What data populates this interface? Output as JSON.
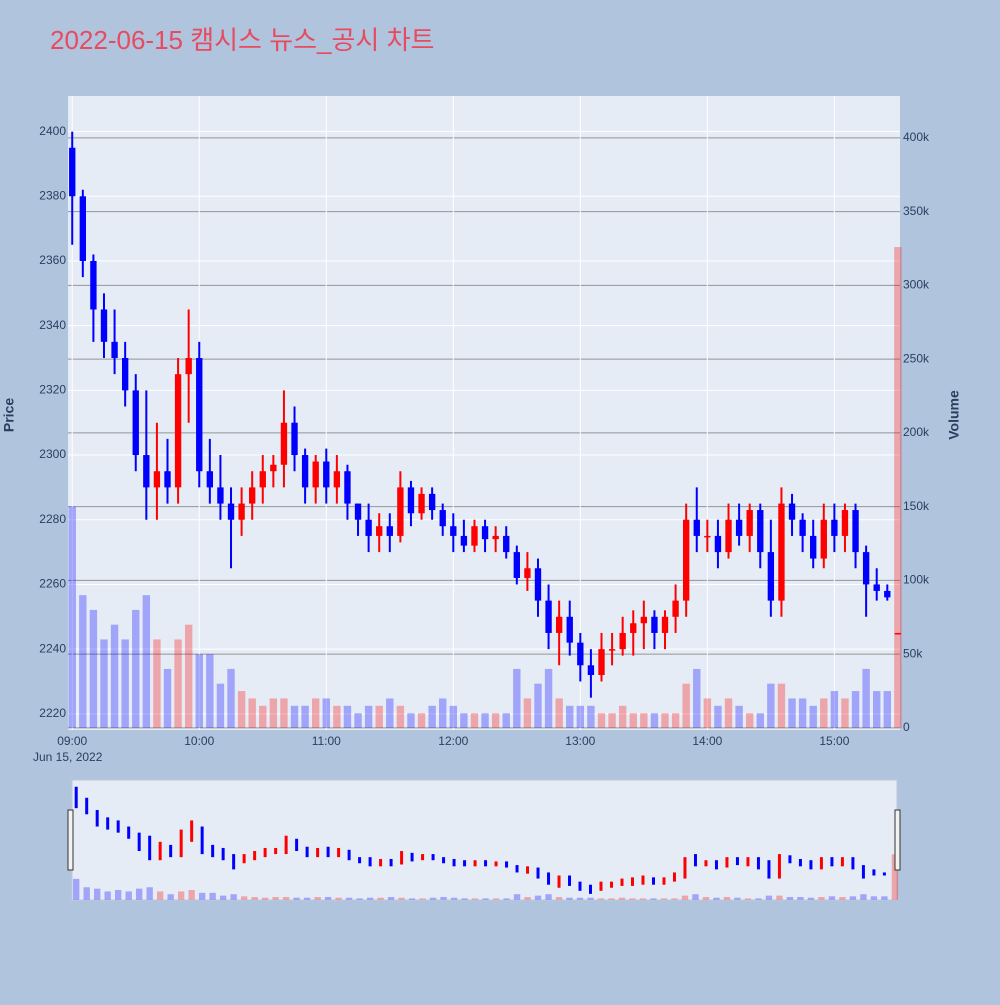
{
  "chart_data": {
    "type": "candlestick",
    "title": "2022-06-15 캠시스 뉴스_공시 차트",
    "x_date_label": "Jun 15, 2022",
    "y_title": "Price",
    "y2_title": "Volume",
    "increasing_color": "#ff0000",
    "decreasing_color": "#0000ff",
    "volume_increasing_color": "rgba(255,0,0,0.3)",
    "volume_decreasing_color": "rgba(0,0,255,0.3)",
    "grid": true,
    "xlim": [
      "08:58",
      "15:31"
    ],
    "xticks": [
      "09:00",
      "10:00",
      "11:00",
      "12:00",
      "13:00",
      "14:00",
      "15:00"
    ],
    "ylim": [
      2215,
      2411
    ],
    "yticks": [
      2220,
      2240,
      2260,
      2280,
      2300,
      2320,
      2340,
      2360,
      2380,
      2400
    ],
    "y2lim": [
      -1400,
      428400
    ],
    "y2ticks": [
      0,
      {
        "value": 50000,
        "label": "50k"
      },
      {
        "value": 100000,
        "label": "100k"
      },
      {
        "value": 150000,
        "label": "150k"
      },
      {
        "value": 200000,
        "label": "200k"
      },
      {
        "value": 250000,
        "label": "250k"
      },
      {
        "value": 300000,
        "label": "300k"
      },
      {
        "value": 350000,
        "label": "350k"
      },
      {
        "value": 400000,
        "label": "400k"
      }
    ],
    "x": [
      "09:00",
      "09:05",
      "09:10",
      "09:15",
      "09:20",
      "09:25",
      "09:30",
      "09:35",
      "09:40",
      "09:45",
      "09:50",
      "09:55",
      "10:00",
      "10:05",
      "10:10",
      "10:15",
      "10:20",
      "10:25",
      "10:30",
      "10:35",
      "10:40",
      "10:45",
      "10:50",
      "10:55",
      "11:00",
      "11:05",
      "11:10",
      "11:15",
      "11:20",
      "11:25",
      "11:30",
      "11:35",
      "11:40",
      "11:45",
      "11:50",
      "11:55",
      "12:00",
      "12:05",
      "12:10",
      "12:15",
      "12:20",
      "12:25",
      "12:30",
      "12:35",
      "12:40",
      "12:45",
      "12:50",
      "12:55",
      "13:00",
      "13:05",
      "13:10",
      "13:15",
      "13:20",
      "13:25",
      "13:30",
      "13:35",
      "13:40",
      "13:45",
      "13:50",
      "13:55",
      "14:00",
      "14:05",
      "14:10",
      "14:15",
      "14:20",
      "14:25",
      "14:30",
      "14:35",
      "14:40",
      "14:45",
      "14:50",
      "14:55",
      "15:00",
      "15:05",
      "15:10",
      "15:15",
      "15:20",
      "15:25",
      "15:30"
    ],
    "open": [
      2395,
      2380,
      2360,
      2345,
      2335,
      2330,
      2320,
      2300,
      2290,
      2295,
      2290,
      2325,
      2330,
      2295,
      2290,
      2285,
      2280,
      2285,
      2290,
      2295,
      2297,
      2310,
      2300,
      2290,
      2298,
      2290,
      2295,
      2285,
      2280,
      2275,
      2278,
      2275,
      2290,
      2282,
      2288,
      2283,
      2278,
      2275,
      2272,
      2278,
      2274,
      2275,
      2270,
      2262,
      2265,
      2255,
      2245,
      2250,
      2242,
      2235,
      2232,
      2240,
      2240,
      2245,
      2248,
      2250,
      2245,
      2250,
      2255,
      2280,
      2275,
      2275,
      2270,
      2280,
      2275,
      2283,
      2270,
      2255,
      2285,
      2280,
      2275,
      2268,
      2280,
      2275,
      2283,
      2270,
      2260,
      2258,
      2245
    ],
    "high": [
      2400,
      2382,
      2362,
      2350,
      2345,
      2335,
      2325,
      2320,
      2310,
      2305,
      2330,
      2345,
      2335,
      2305,
      2300,
      2290,
      2290,
      2295,
      2300,
      2300,
      2320,
      2315,
      2302,
      2300,
      2302,
      2300,
      2297,
      2285,
      2285,
      2282,
      2282,
      2295,
      2292,
      2290,
      2290,
      2285,
      2282,
      2280,
      2280,
      2280,
      2278,
      2278,
      2272,
      2270,
      2268,
      2260,
      2255,
      2255,
      2245,
      2240,
      2245,
      2245,
      2250,
      2252,
      2255,
      2252,
      2252,
      2260,
      2285,
      2290,
      2280,
      2280,
      2285,
      2285,
      2285,
      2285,
      2280,
      2290,
      2288,
      2282,
      2280,
      2285,
      2285,
      2285,
      2285,
      2272,
      2265,
      2260,
      2245
    ],
    "low": [
      2365,
      2355,
      2335,
      2330,
      2325,
      2315,
      2295,
      2280,
      2280,
      2285,
      2285,
      2310,
      2290,
      2285,
      2280,
      2265,
      2275,
      2280,
      2285,
      2290,
      2290,
      2295,
      2285,
      2285,
      2285,
      2285,
      2280,
      2275,
      2270,
      2270,
      2270,
      2273,
      2278,
      2280,
      2280,
      2275,
      2270,
      2270,
      2270,
      2270,
      2270,
      2268,
      2260,
      2258,
      2250,
      2240,
      2235,
      2238,
      2230,
      2225,
      2230,
      2235,
      2238,
      2238,
      2240,
      2240,
      2240,
      2245,
      2250,
      2270,
      2270,
      2265,
      2268,
      2272,
      2270,
      2265,
      2250,
      2250,
      2275,
      2270,
      2265,
      2265,
      2270,
      2270,
      2265,
      2250,
      2255,
      2255,
      2245
    ],
    "close": [
      2380,
      2360,
      2345,
      2335,
      2330,
      2320,
      2300,
      2290,
      2295,
      2290,
      2325,
      2330,
      2295,
      2290,
      2285,
      2280,
      2285,
      2290,
      2295,
      2297,
      2310,
      2300,
      2290,
      2298,
      2290,
      2295,
      2285,
      2280,
      2275,
      2278,
      2275,
      2290,
      2282,
      2288,
      2283,
      2278,
      2275,
      2272,
      2278,
      2274,
      2275,
      2270,
      2262,
      2265,
      2255,
      2245,
      2250,
      2242,
      2235,
      2232,
      2240,
      2240,
      2245,
      2248,
      2250,
      2245,
      2250,
      2255,
      2280,
      2275,
      2275,
      2270,
      2280,
      2275,
      2283,
      2270,
      2255,
      2285,
      2280,
      2275,
      2268,
      2280,
      2275,
      2283,
      2270,
      2260,
      2258,
      2256,
      2245
    ],
    "volume": [
      150000,
      90000,
      80000,
      60000,
      70000,
      60000,
      80000,
      90000,
      60000,
      40000,
      60000,
      70000,
      50000,
      50000,
      30000,
      40000,
      25000,
      20000,
      15000,
      20000,
      20000,
      15000,
      15000,
      20000,
      20000,
      15000,
      15000,
      10000,
      15000,
      15000,
      20000,
      15000,
      10000,
      10000,
      15000,
      20000,
      15000,
      10000,
      10000,
      10000,
      10000,
      10000,
      40000,
      20000,
      30000,
      40000,
      20000,
      15000,
      15000,
      15000,
      10000,
      10000,
      15000,
      10000,
      10000,
      10000,
      10000,
      10000,
      30000,
      40000,
      20000,
      15000,
      20000,
      15000,
      10000,
      10000,
      30000,
      30000,
      20000,
      20000,
      15000,
      20000,
      25000,
      20000,
      25000,
      40000,
      25000,
      25000,
      326000
    ]
  }
}
